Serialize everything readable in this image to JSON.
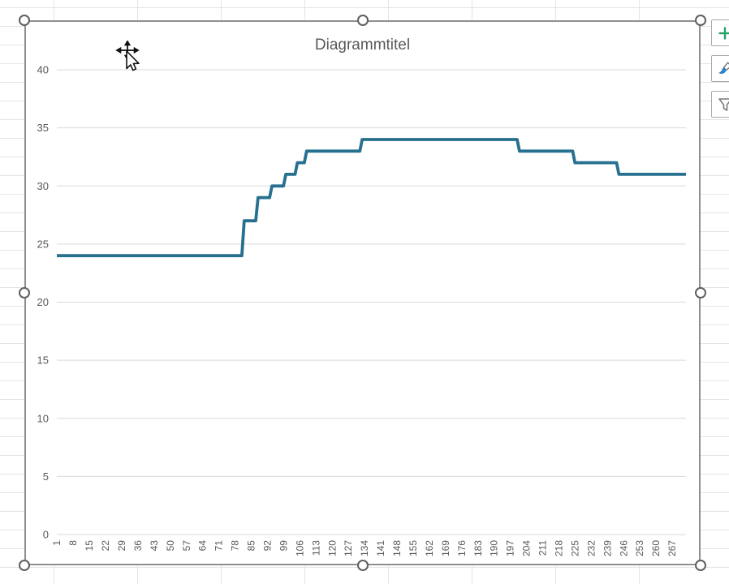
{
  "chart_data": {
    "type": "line",
    "subtype": "step-like category line",
    "title": "Diagrammtitel",
    "xlabel": "",
    "ylabel": "",
    "ylim": [
      0,
      40
    ],
    "y_ticks": [
      0,
      5,
      10,
      15,
      20,
      25,
      30,
      35,
      40
    ],
    "x_index_range": [
      1,
      273
    ],
    "x_tick_labels": [
      "1",
      "8",
      "15",
      "22",
      "29",
      "36",
      "43",
      "50",
      "57",
      "64",
      "71",
      "78",
      "85",
      "92",
      "99",
      "106",
      "113",
      "120",
      "127",
      "134",
      "141",
      "148",
      "155",
      "162",
      "169",
      "176",
      "183",
      "190",
      "197",
      "204",
      "211",
      "218",
      "225",
      "232",
      "239",
      "246",
      "253",
      "260",
      "267"
    ],
    "grid": true,
    "legend": "none",
    "axis_text_color": "#595959",
    "gridline_color": "#d9d9d9",
    "title_color": "#595959",
    "series": [
      {
        "color": "#27708f",
        "step_segments": [
          {
            "from": 1,
            "to": 81,
            "value": 24
          },
          {
            "from": 82,
            "to": 87,
            "value": 27
          },
          {
            "from": 88,
            "to": 93,
            "value": 29
          },
          {
            "from": 94,
            "to": 99,
            "value": 30
          },
          {
            "from": 100,
            "to": 104,
            "value": 31
          },
          {
            "from": 105,
            "to": 108,
            "value": 32
          },
          {
            "from": 109,
            "to": 132,
            "value": 33
          },
          {
            "from": 133,
            "to": 200,
            "value": 34
          },
          {
            "from": 201,
            "to": 224,
            "value": 33
          },
          {
            "from": 225,
            "to": 243,
            "value": 32
          },
          {
            "from": 244,
            "to": 273,
            "value": 31
          }
        ]
      }
    ]
  },
  "side_buttons": [
    {
      "id": "chart-elements-button",
      "icon": "plus-icon",
      "icon_color": "#21a366"
    },
    {
      "id": "chart-styles-button",
      "icon": "brush-icon",
      "icon_color": "#2f88d8"
    },
    {
      "id": "chart-filters-button",
      "icon": "funnel-icon",
      "icon_color": "#7a7a7a"
    }
  ],
  "selection": {
    "handle_fill": "#ffffff",
    "handle_stroke": "#5f5f5f",
    "border_color": "#8f8f8f"
  },
  "cursor": {
    "type": "move-object-cursor"
  }
}
